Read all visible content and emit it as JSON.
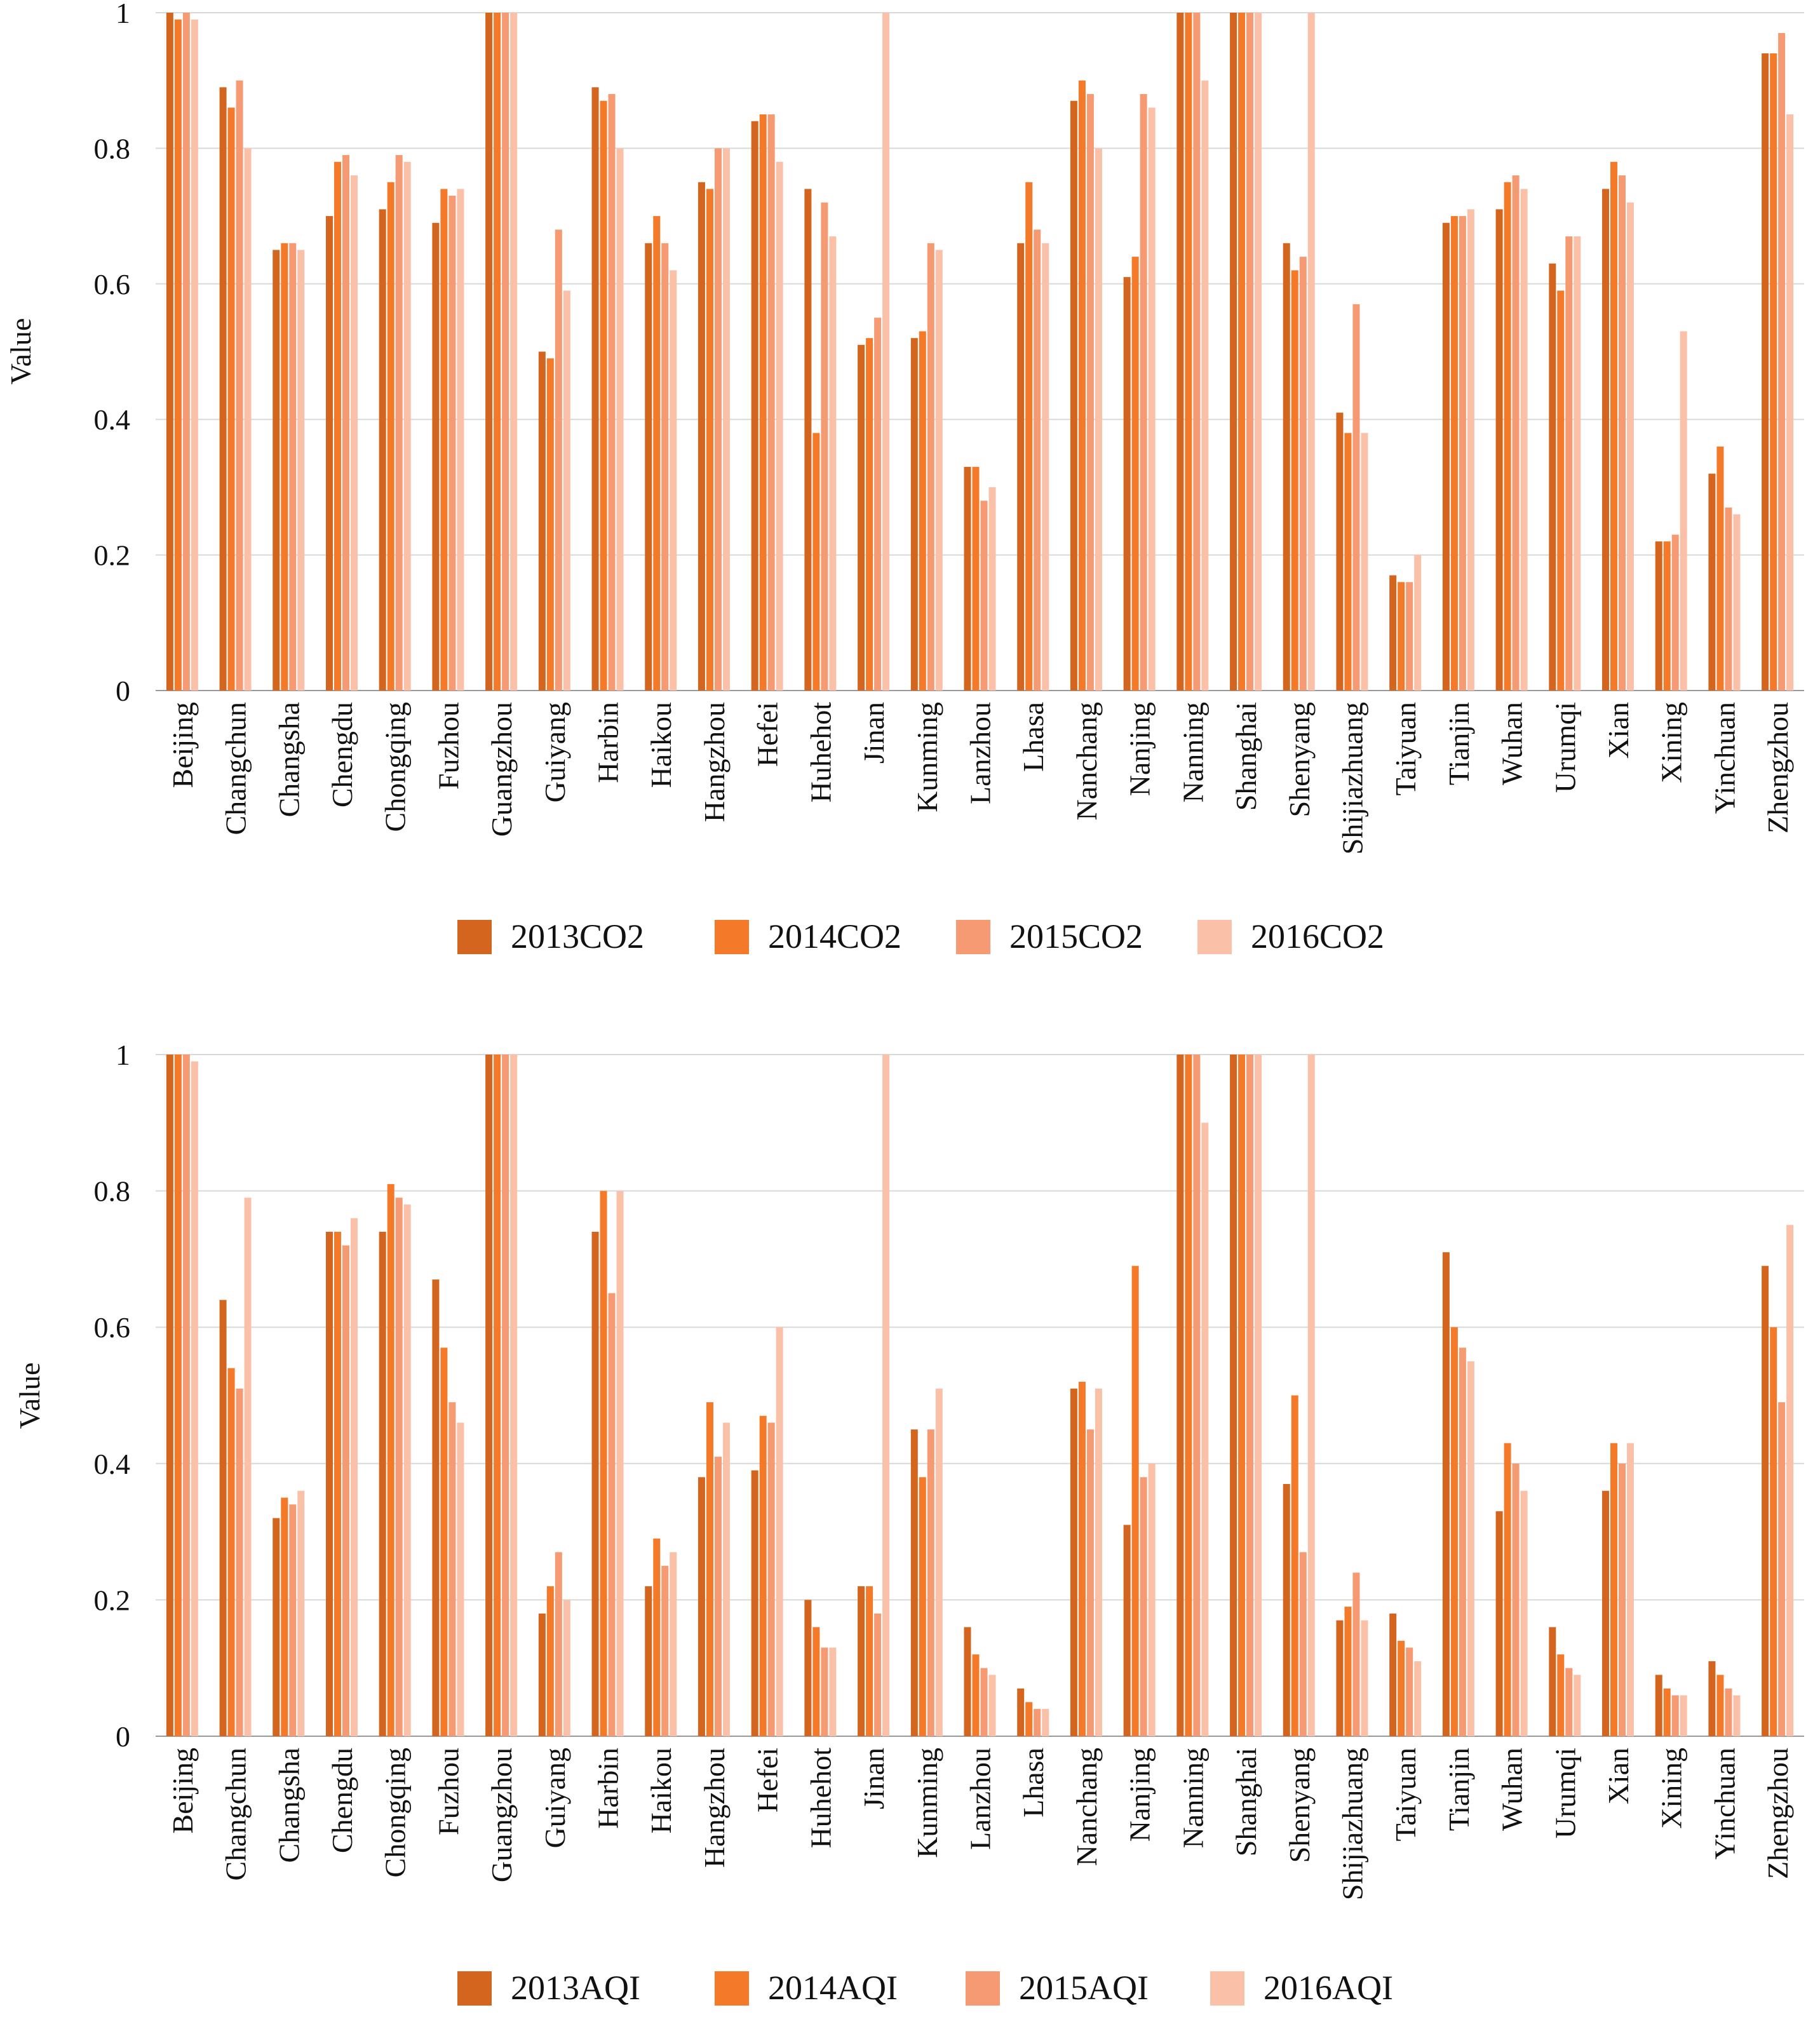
{
  "chart_data": [
    {
      "type": "bar",
      "title": "",
      "xlabel": "",
      "ylabel": "Value",
      "ylim": [
        0,
        1
      ],
      "yticks": [
        0,
        0.2,
        0.4,
        0.6,
        0.8,
        1
      ],
      "ytick_labels": [
        "0",
        "0.2",
        "0.4",
        "0.6",
        "0.8",
        "1"
      ],
      "grid": true,
      "legend_position": "bottom",
      "categories": [
        "Beijing",
        "Changchun",
        "Changsha",
        "Chengdu",
        "Chongqing",
        "Fuzhou",
        "Guangzhou",
        "Guiyang",
        "Harbin",
        "Haikou",
        "Hangzhou",
        "Hefei",
        "Huhehot",
        "Jinan",
        "Kunming",
        "Lanzhou",
        "Lhasa",
        "Nanchang",
        "Nanjing",
        "Nanning",
        "Shanghai",
        "Shenyang",
        "Shijiazhuang",
        "Taiyuan",
        "Tianjin",
        "Wuhan",
        "Urumqi",
        "Xian",
        "Xining",
        "Yinchuan",
        "Zhengzhou"
      ],
      "series": [
        {
          "name": "2013CO2",
          "color": "#D4651E",
          "values": [
            1.0,
            0.89,
            0.65,
            0.7,
            0.71,
            0.69,
            1.0,
            0.5,
            0.89,
            0.66,
            0.75,
            0.84,
            0.74,
            0.51,
            0.52,
            0.33,
            0.66,
            0.87,
            0.61,
            1.0,
            1.0,
            0.66,
            0.41,
            0.17,
            0.69,
            0.71,
            0.63,
            0.74,
            0.22,
            0.32,
            0.94
          ]
        },
        {
          "name": "2014CO2",
          "color": "#F47A2A",
          "values": [
            0.99,
            0.86,
            0.66,
            0.78,
            0.75,
            0.74,
            1.0,
            0.49,
            0.87,
            0.7,
            0.74,
            0.85,
            0.38,
            0.52,
            0.53,
            0.33,
            0.75,
            0.9,
            0.64,
            1.0,
            1.0,
            0.62,
            0.38,
            0.16,
            0.7,
            0.75,
            0.59,
            0.78,
            0.22,
            0.36,
            0.94
          ]
        },
        {
          "name": "2015CO2",
          "color": "#F59A72",
          "values": [
            1.0,
            0.9,
            0.66,
            0.79,
            0.79,
            0.73,
            1.0,
            0.68,
            0.88,
            0.66,
            0.8,
            0.85,
            0.72,
            0.55,
            0.66,
            0.28,
            0.68,
            0.88,
            0.88,
            1.0,
            1.0,
            0.64,
            0.57,
            0.16,
            0.7,
            0.76,
            0.67,
            0.76,
            0.23,
            0.27,
            0.97
          ]
        },
        {
          "name": "2016CO2",
          "color": "#FAC0A8",
          "values": [
            0.99,
            0.8,
            0.65,
            0.76,
            0.78,
            0.74,
            1.0,
            0.59,
            0.8,
            0.62,
            0.8,
            0.78,
            0.67,
            1.0,
            0.65,
            0.3,
            0.66,
            0.8,
            0.86,
            0.9,
            1.0,
            1.0,
            0.38,
            0.2,
            0.71,
            0.74,
            0.67,
            0.72,
            0.53,
            0.26,
            0.85
          ]
        }
      ]
    },
    {
      "type": "bar",
      "title": "",
      "xlabel": "",
      "ylabel": "Value",
      "ylim": [
        0,
        1
      ],
      "yticks": [
        0,
        0.2,
        0.4,
        0.6,
        0.8,
        1
      ],
      "ytick_labels": [
        "0",
        "0.2",
        "0.4",
        "0.6",
        "0.8",
        "1"
      ],
      "grid": true,
      "legend_position": "bottom",
      "categories": [
        "Beijing",
        "Changchun",
        "Changsha",
        "Chengdu",
        "Chongqing",
        "Fuzhou",
        "Guangzhou",
        "Guiyang",
        "Harbin",
        "Haikou",
        "Hangzhou",
        "Hefei",
        "Huhehot",
        "Jinan",
        "Kunming",
        "Lanzhou",
        "Lhasa",
        "Nanchang",
        "Nanjing",
        "Nanning",
        "Shanghai",
        "Shenyang",
        "Shijiazhuang",
        "Taiyuan",
        "Tianjin",
        "Wuhan",
        "Urumqi",
        "Xian",
        "Xining",
        "Yinchuan",
        "Zhengzhou"
      ],
      "series": [
        {
          "name": "2013AQI",
          "color": "#D4651E",
          "values": [
            1.0,
            0.64,
            0.32,
            0.74,
            0.74,
            0.67,
            1.0,
            0.18,
            0.74,
            0.22,
            0.38,
            0.39,
            0.2,
            0.22,
            0.45,
            0.16,
            0.07,
            0.51,
            0.31,
            1.0,
            1.0,
            0.37,
            0.17,
            0.18,
            0.71,
            0.33,
            0.16,
            0.36,
            0.09,
            0.11,
            0.69
          ]
        },
        {
          "name": "2014AQI",
          "color": "#F47A2A",
          "values": [
            1.0,
            0.54,
            0.35,
            0.74,
            0.81,
            0.57,
            1.0,
            0.22,
            0.8,
            0.29,
            0.49,
            0.47,
            0.16,
            0.22,
            0.38,
            0.12,
            0.05,
            0.52,
            0.69,
            1.0,
            1.0,
            0.5,
            0.19,
            0.14,
            0.6,
            0.43,
            0.12,
            0.43,
            0.07,
            0.09,
            0.6
          ]
        },
        {
          "name": "2015AQI",
          "color": "#F59A72",
          "values": [
            1.0,
            0.51,
            0.34,
            0.72,
            0.79,
            0.49,
            1.0,
            0.27,
            0.65,
            0.25,
            0.41,
            0.46,
            0.13,
            0.18,
            0.45,
            0.1,
            0.04,
            0.45,
            0.38,
            1.0,
            1.0,
            0.27,
            0.24,
            0.13,
            0.57,
            0.4,
            0.1,
            0.4,
            0.06,
            0.07,
            0.49
          ]
        },
        {
          "name": "2016AQI",
          "color": "#FAC0A8",
          "values": [
            0.99,
            0.79,
            0.36,
            0.76,
            0.78,
            0.46,
            1.0,
            0.2,
            0.8,
            0.27,
            0.46,
            0.6,
            0.13,
            1.0,
            0.51,
            0.09,
            0.04,
            0.51,
            0.4,
            0.9,
            1.0,
            1.0,
            0.17,
            0.11,
            0.55,
            0.36,
            0.09,
            0.43,
            0.06,
            0.06,
            0.75
          ]
        }
      ]
    }
  ]
}
